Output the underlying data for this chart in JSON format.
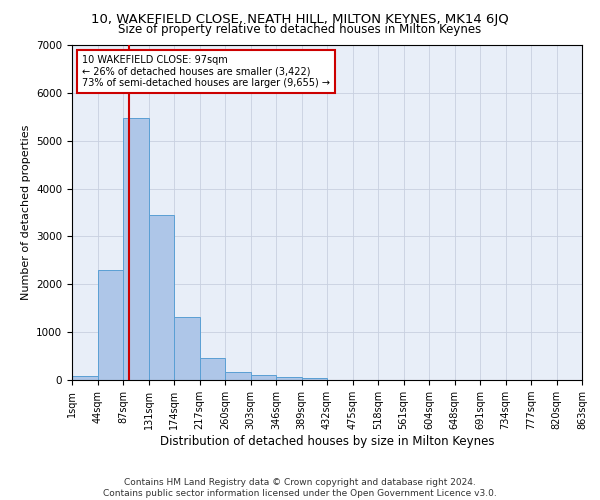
{
  "title": "10, WAKEFIELD CLOSE, NEATH HILL, MILTON KEYNES, MK14 6JQ",
  "subtitle": "Size of property relative to detached houses in Milton Keynes",
  "xlabel": "Distribution of detached houses by size in Milton Keynes",
  "ylabel": "Number of detached properties",
  "footer_line1": "Contains HM Land Registry data © Crown copyright and database right 2024.",
  "footer_line2": "Contains public sector information licensed under the Open Government Licence v3.0.",
  "bin_labels": [
    "1sqm",
    "44sqm",
    "87sqm",
    "131sqm",
    "174sqm",
    "217sqm",
    "260sqm",
    "303sqm",
    "346sqm",
    "389sqm",
    "432sqm",
    "475sqm",
    "518sqm",
    "561sqm",
    "604sqm",
    "648sqm",
    "691sqm",
    "734sqm",
    "777sqm",
    "820sqm",
    "863sqm"
  ],
  "bar_values": [
    75,
    2300,
    5480,
    3450,
    1320,
    470,
    165,
    95,
    65,
    40,
    0,
    0,
    0,
    0,
    0,
    0,
    0,
    0,
    0,
    0
  ],
  "bar_color": "#aec6e8",
  "bar_edgecolor": "#5a9fd4",
  "annotation_text": "10 WAKEFIELD CLOSE: 97sqm\n← 26% of detached houses are smaller (3,422)\n73% of semi-detached houses are larger (9,655) →",
  "vline_x": 1.72,
  "annotation_box_edgecolor": "#cc0000",
  "vline_color": "#cc0000",
  "ylim": [
    0,
    7000
  ],
  "yticks": [
    0,
    1000,
    2000,
    3000,
    4000,
    5000,
    6000,
    7000
  ],
  "background_color": "#e8eef8",
  "grid_color": "#c8d0e0",
  "title_fontsize": 9.5,
  "subtitle_fontsize": 8.5,
  "xlabel_fontsize": 8.5,
  "ylabel_fontsize": 8,
  "tick_fontsize": 7,
  "annotation_fontsize": 7,
  "footer_fontsize": 6.5
}
